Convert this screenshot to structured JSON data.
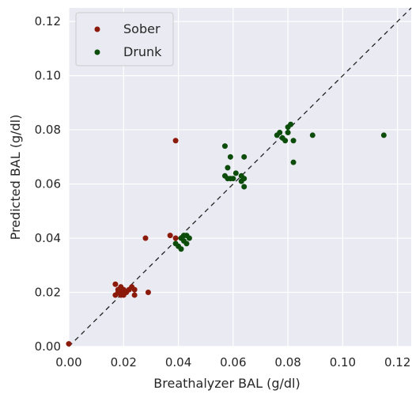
{
  "chart_data": {
    "type": "scatter",
    "xlabel": "Breathalyzer BAL (g/dl)",
    "ylabel": "Predicted BAL (g/dl)",
    "xlim": [
      0,
      0.125
    ],
    "ylim": [
      0,
      0.125
    ],
    "x_ticks": [
      "0.00",
      "0.02",
      "0.04",
      "0.06",
      "0.08",
      "0.10",
      "0.12"
    ],
    "y_ticks": [
      "0.00",
      "0.02",
      "0.04",
      "0.06",
      "0.08",
      "0.10",
      "0.12"
    ],
    "grid": true,
    "legend_position": "top-left",
    "reference_line": "y = x (dashed)",
    "series": [
      {
        "name": "Sober",
        "color": "#8b1a0b",
        "points": [
          [
            0.0,
            0.001
          ],
          [
            0.039,
            0.076
          ],
          [
            0.028,
            0.04
          ],
          [
            0.037,
            0.041
          ],
          [
            0.039,
            0.04
          ],
          [
            0.017,
            0.023
          ],
          [
            0.017,
            0.019
          ],
          [
            0.018,
            0.02
          ],
          [
            0.018,
            0.021
          ],
          [
            0.019,
            0.019
          ],
          [
            0.019,
            0.022
          ],
          [
            0.02,
            0.019
          ],
          [
            0.02,
            0.021
          ],
          [
            0.021,
            0.02
          ],
          [
            0.022,
            0.021
          ],
          [
            0.023,
            0.022
          ],
          [
            0.024,
            0.019
          ],
          [
            0.024,
            0.021
          ],
          [
            0.029,
            0.02
          ],
          [
            0.019,
            0.02
          ]
        ]
      },
      {
        "name": "Drunk",
        "color": "#0d4d0b",
        "points": [
          [
            0.039,
            0.038
          ],
          [
            0.04,
            0.037
          ],
          [
            0.041,
            0.036
          ],
          [
            0.041,
            0.04
          ],
          [
            0.042,
            0.041
          ],
          [
            0.042,
            0.039
          ],
          [
            0.043,
            0.038
          ],
          [
            0.043,
            0.041
          ],
          [
            0.044,
            0.04
          ],
          [
            0.057,
            0.074
          ],
          [
            0.058,
            0.066
          ],
          [
            0.057,
            0.063
          ],
          [
            0.058,
            0.062
          ],
          [
            0.059,
            0.07
          ],
          [
            0.059,
            0.062
          ],
          [
            0.06,
            0.062
          ],
          [
            0.061,
            0.064
          ],
          [
            0.063,
            0.063
          ],
          [
            0.063,
            0.061
          ],
          [
            0.064,
            0.059
          ],
          [
            0.064,
            0.07
          ],
          [
            0.064,
            0.062
          ],
          [
            0.076,
            0.078
          ],
          [
            0.077,
            0.079
          ],
          [
            0.078,
            0.077
          ],
          [
            0.079,
            0.076
          ],
          [
            0.08,
            0.079
          ],
          [
            0.08,
            0.081
          ],
          [
            0.081,
            0.082
          ],
          [
            0.082,
            0.076
          ],
          [
            0.082,
            0.068
          ],
          [
            0.089,
            0.078
          ],
          [
            0.115,
            0.078
          ]
        ]
      }
    ]
  }
}
